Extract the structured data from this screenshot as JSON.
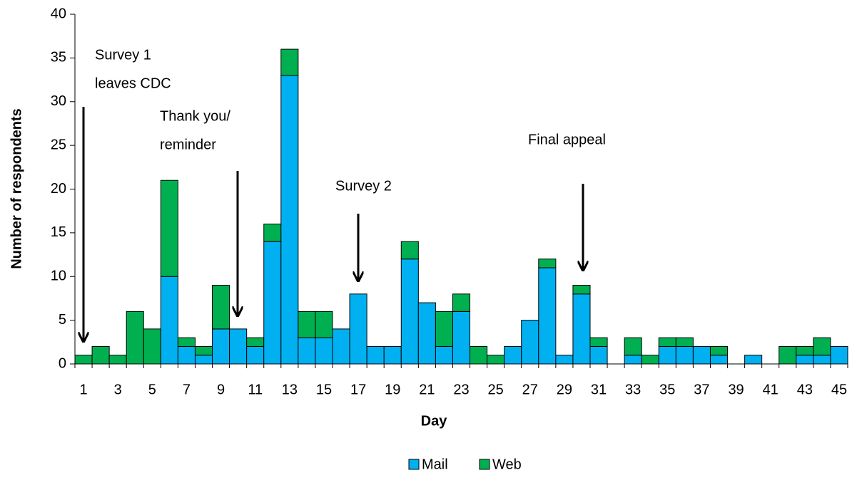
{
  "chart_data": {
    "type": "stacked_bar",
    "x_label": "Day",
    "y_label": "Number of respondents",
    "categories": [
      1,
      null,
      3,
      null,
      5,
      null,
      7,
      null,
      9,
      null,
      11,
      null,
      13,
      null,
      15,
      null,
      17,
      null,
      19,
      null,
      21,
      null,
      23,
      null,
      25,
      null,
      27,
      null,
      29,
      null,
      31,
      null,
      33,
      null,
      35,
      null,
      37,
      null,
      39,
      null,
      41,
      null,
      43,
      null,
      45
    ],
    "series": [
      {
        "name": "Mail",
        "color": "#00b0f0",
        "values": [
          0,
          0,
          0,
          0,
          0,
          10,
          2,
          1,
          4,
          4,
          2,
          14,
          33,
          3,
          3,
          4,
          8,
          2,
          2,
          12,
          7,
          2,
          6,
          0,
          0,
          2,
          5,
          11,
          1,
          8,
          2,
          0,
          1,
          0,
          2,
          2,
          2,
          1,
          0,
          1,
          0,
          0,
          1,
          1,
          2
        ]
      },
      {
        "name": "Web",
        "color": "#00b050",
        "values": [
          1,
          2,
          1,
          6,
          4,
          11,
          1,
          1,
          5,
          0,
          1,
          2,
          3,
          3,
          3,
          0,
          0,
          0,
          0,
          2,
          0,
          4,
          2,
          2,
          1,
          0,
          0,
          1,
          0,
          1,
          1,
          0,
          2,
          1,
          1,
          1,
          0,
          1,
          0,
          0,
          0,
          2,
          1,
          2,
          0
        ]
      }
    ],
    "ylim": [
      0,
      40
    ],
    "yticks": [
      0,
      5,
      10,
      15,
      20,
      25,
      30,
      35,
      40
    ],
    "grid": false,
    "legend": "bottom",
    "annotations": [
      {
        "lines": [
          "Survey 1",
          "leaves CDC"
        ]
      },
      {
        "lines": [
          "Thank you/",
          "reminder"
        ]
      },
      {
        "lines": [
          "Survey 2"
        ]
      },
      {
        "lines": [
          "Final appeal"
        ]
      }
    ]
  }
}
